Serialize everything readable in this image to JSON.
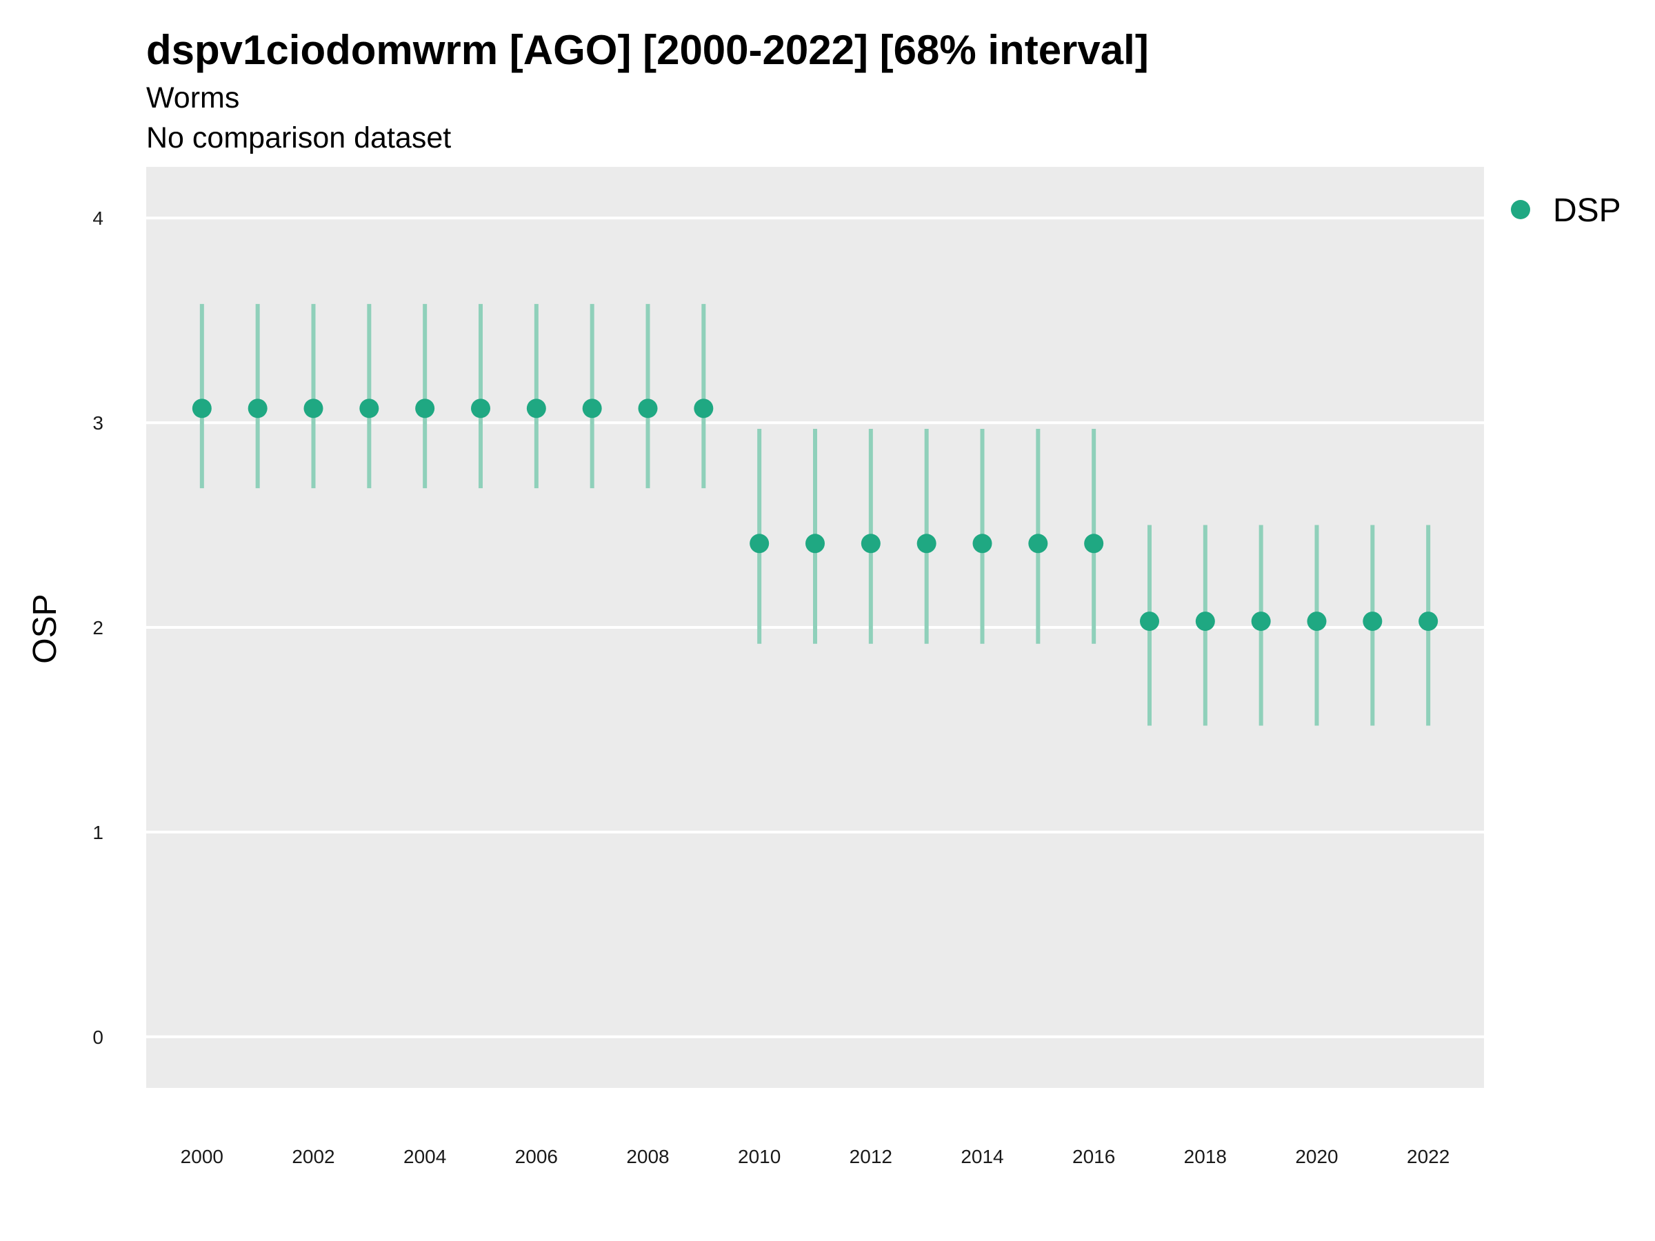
{
  "chart_data": {
    "type": "scatter",
    "title": "dspv1ciodomwrm [AGO] [2000-2022] [68% interval]",
    "subtitle": "Worms",
    "subtitle2": "No comparison dataset",
    "ylabel": "OSP",
    "xlabel": "",
    "ylim": [
      -0.25,
      4.25
    ],
    "xlim": [
      1999,
      2023
    ],
    "yticks": [
      0,
      1,
      2,
      3,
      4
    ],
    "xticks": [
      2000,
      2002,
      2004,
      2006,
      2008,
      2010,
      2012,
      2014,
      2016,
      2018,
      2020,
      2022
    ],
    "grid": true,
    "legend_position": "right",
    "colors": {
      "point": "#1fa882",
      "errorbar": "#8fd0ba",
      "panel": "#ebebeb",
      "grid": "#ffffff"
    },
    "series": [
      {
        "name": "DSP",
        "points": [
          {
            "x": 2000,
            "y": 3.07,
            "low": 2.68,
            "high": 3.58
          },
          {
            "x": 2001,
            "y": 3.07,
            "low": 2.68,
            "high": 3.58
          },
          {
            "x": 2002,
            "y": 3.07,
            "low": 2.68,
            "high": 3.58
          },
          {
            "x": 2003,
            "y": 3.07,
            "low": 2.68,
            "high": 3.58
          },
          {
            "x": 2004,
            "y": 3.07,
            "low": 2.68,
            "high": 3.58
          },
          {
            "x": 2005,
            "y": 3.07,
            "low": 2.68,
            "high": 3.58
          },
          {
            "x": 2006,
            "y": 3.07,
            "low": 2.68,
            "high": 3.58
          },
          {
            "x": 2007,
            "y": 3.07,
            "low": 2.68,
            "high": 3.58
          },
          {
            "x": 2008,
            "y": 3.07,
            "low": 2.68,
            "high": 3.58
          },
          {
            "x": 2009,
            "y": 3.07,
            "low": 2.68,
            "high": 3.58
          },
          {
            "x": 2010,
            "y": 2.41,
            "low": 1.92,
            "high": 2.97
          },
          {
            "x": 2011,
            "y": 2.41,
            "low": 1.92,
            "high": 2.97
          },
          {
            "x": 2012,
            "y": 2.41,
            "low": 1.92,
            "high": 2.97
          },
          {
            "x": 2013,
            "y": 2.41,
            "low": 1.92,
            "high": 2.97
          },
          {
            "x": 2014,
            "y": 2.41,
            "low": 1.92,
            "high": 2.97
          },
          {
            "x": 2015,
            "y": 2.41,
            "low": 1.92,
            "high": 2.97
          },
          {
            "x": 2016,
            "y": 2.41,
            "low": 1.92,
            "high": 2.97
          },
          {
            "x": 2017,
            "y": 2.03,
            "low": 1.52,
            "high": 2.5
          },
          {
            "x": 2018,
            "y": 2.03,
            "low": 1.52,
            "high": 2.5
          },
          {
            "x": 2019,
            "y": 2.03,
            "low": 1.52,
            "high": 2.5
          },
          {
            "x": 2020,
            "y": 2.03,
            "low": 1.52,
            "high": 2.5
          },
          {
            "x": 2021,
            "y": 2.03,
            "low": 1.52,
            "high": 2.5
          },
          {
            "x": 2022,
            "y": 2.03,
            "low": 1.52,
            "high": 2.5
          }
        ]
      }
    ]
  }
}
